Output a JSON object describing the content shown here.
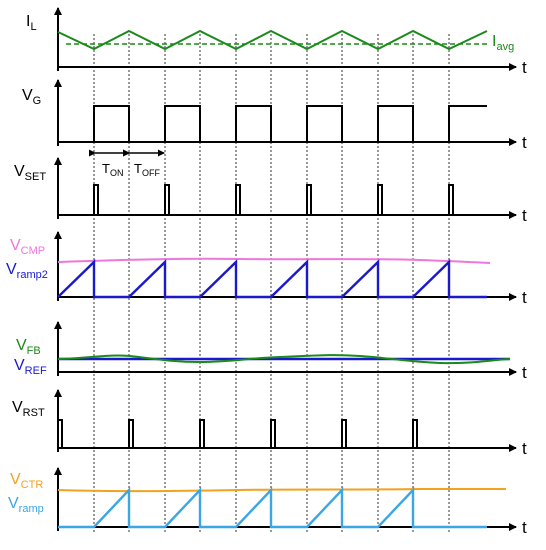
{
  "axis_time_label": "t",
  "colors": {
    "black": "#000000",
    "green": "#1a8a1a",
    "pink": "#ee77dd",
    "blue": "#1a1acc",
    "orange": "#f2a21e",
    "lightblue": "#3aa6e6"
  },
  "panels": {
    "il": {
      "main": "I",
      "sub": "L"
    },
    "iavg": {
      "main": "I",
      "sub": "avg"
    },
    "vg": {
      "main": "V",
      "sub": "G"
    },
    "ton": {
      "main": "T",
      "sub": "ON"
    },
    "toff": {
      "main": "T",
      "sub": "OFF"
    },
    "vset": {
      "main": "V",
      "sub": "SET"
    },
    "vcmp": {
      "main": "V",
      "sub": "CMP"
    },
    "vramp2": {
      "main": "V",
      "sub": "ramp2"
    },
    "vfb": {
      "main": "V",
      "sub": "FB"
    },
    "vref": {
      "main": "V",
      "sub": "REF"
    },
    "vrst": {
      "main": "V",
      "sub": "RST"
    },
    "vctr": {
      "main": "V",
      "sub": "CTR"
    },
    "vramp": {
      "main": "V",
      "sub": "ramp"
    }
  }
}
